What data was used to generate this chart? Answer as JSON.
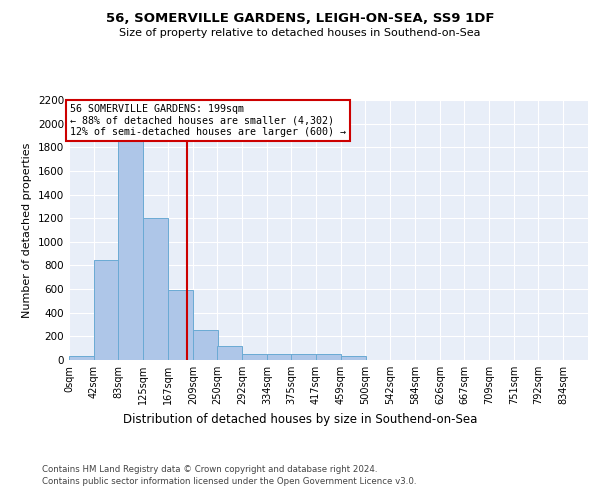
{
  "title1": "56, SOMERVILLE GARDENS, LEIGH-ON-SEA, SS9 1DF",
  "title2": "Size of property relative to detached houses in Southend-on-Sea",
  "xlabel": "Distribution of detached houses by size in Southend-on-Sea",
  "ylabel": "Number of detached properties",
  "bin_labels": [
    "0sqm",
    "42sqm",
    "83sqm",
    "125sqm",
    "167sqm",
    "209sqm",
    "250sqm",
    "292sqm",
    "334sqm",
    "375sqm",
    "417sqm",
    "459sqm",
    "500sqm",
    "542sqm",
    "584sqm",
    "626sqm",
    "667sqm",
    "709sqm",
    "751sqm",
    "792sqm",
    "834sqm"
  ],
  "bin_edges": [
    0,
    42,
    83,
    125,
    167,
    209,
    250,
    292,
    334,
    375,
    417,
    459,
    500,
    542,
    584,
    626,
    667,
    709,
    751,
    792,
    834
  ],
  "bar_heights": [
    30,
    850,
    1850,
    1200,
    590,
    250,
    120,
    55,
    55,
    55,
    55,
    30,
    0,
    0,
    0,
    0,
    0,
    0,
    0,
    0
  ],
  "bar_color": "#aec6e8",
  "bar_edge_color": "#6aaad4",
  "vline_x": 199,
  "vline_color": "#cc0000",
  "annotation_lines": [
    "56 SOMERVILLE GARDENS: 199sqm",
    "← 88% of detached houses are smaller (4,302)",
    "12% of semi-detached houses are larger (600) →"
  ],
  "annotation_box_color": "#ffffff",
  "annotation_box_edge_color": "#cc0000",
  "ylim": [
    0,
    2200
  ],
  "yticks": [
    0,
    200,
    400,
    600,
    800,
    1000,
    1200,
    1400,
    1600,
    1800,
    2000,
    2200
  ],
  "footer1": "Contains HM Land Registry data © Crown copyright and database right 2024.",
  "footer2": "Contains public sector information licensed under the Open Government Licence v3.0.",
  "background_color": "#ffffff",
  "plot_bg_color": "#e8eef8",
  "grid_color": "#ffffff"
}
